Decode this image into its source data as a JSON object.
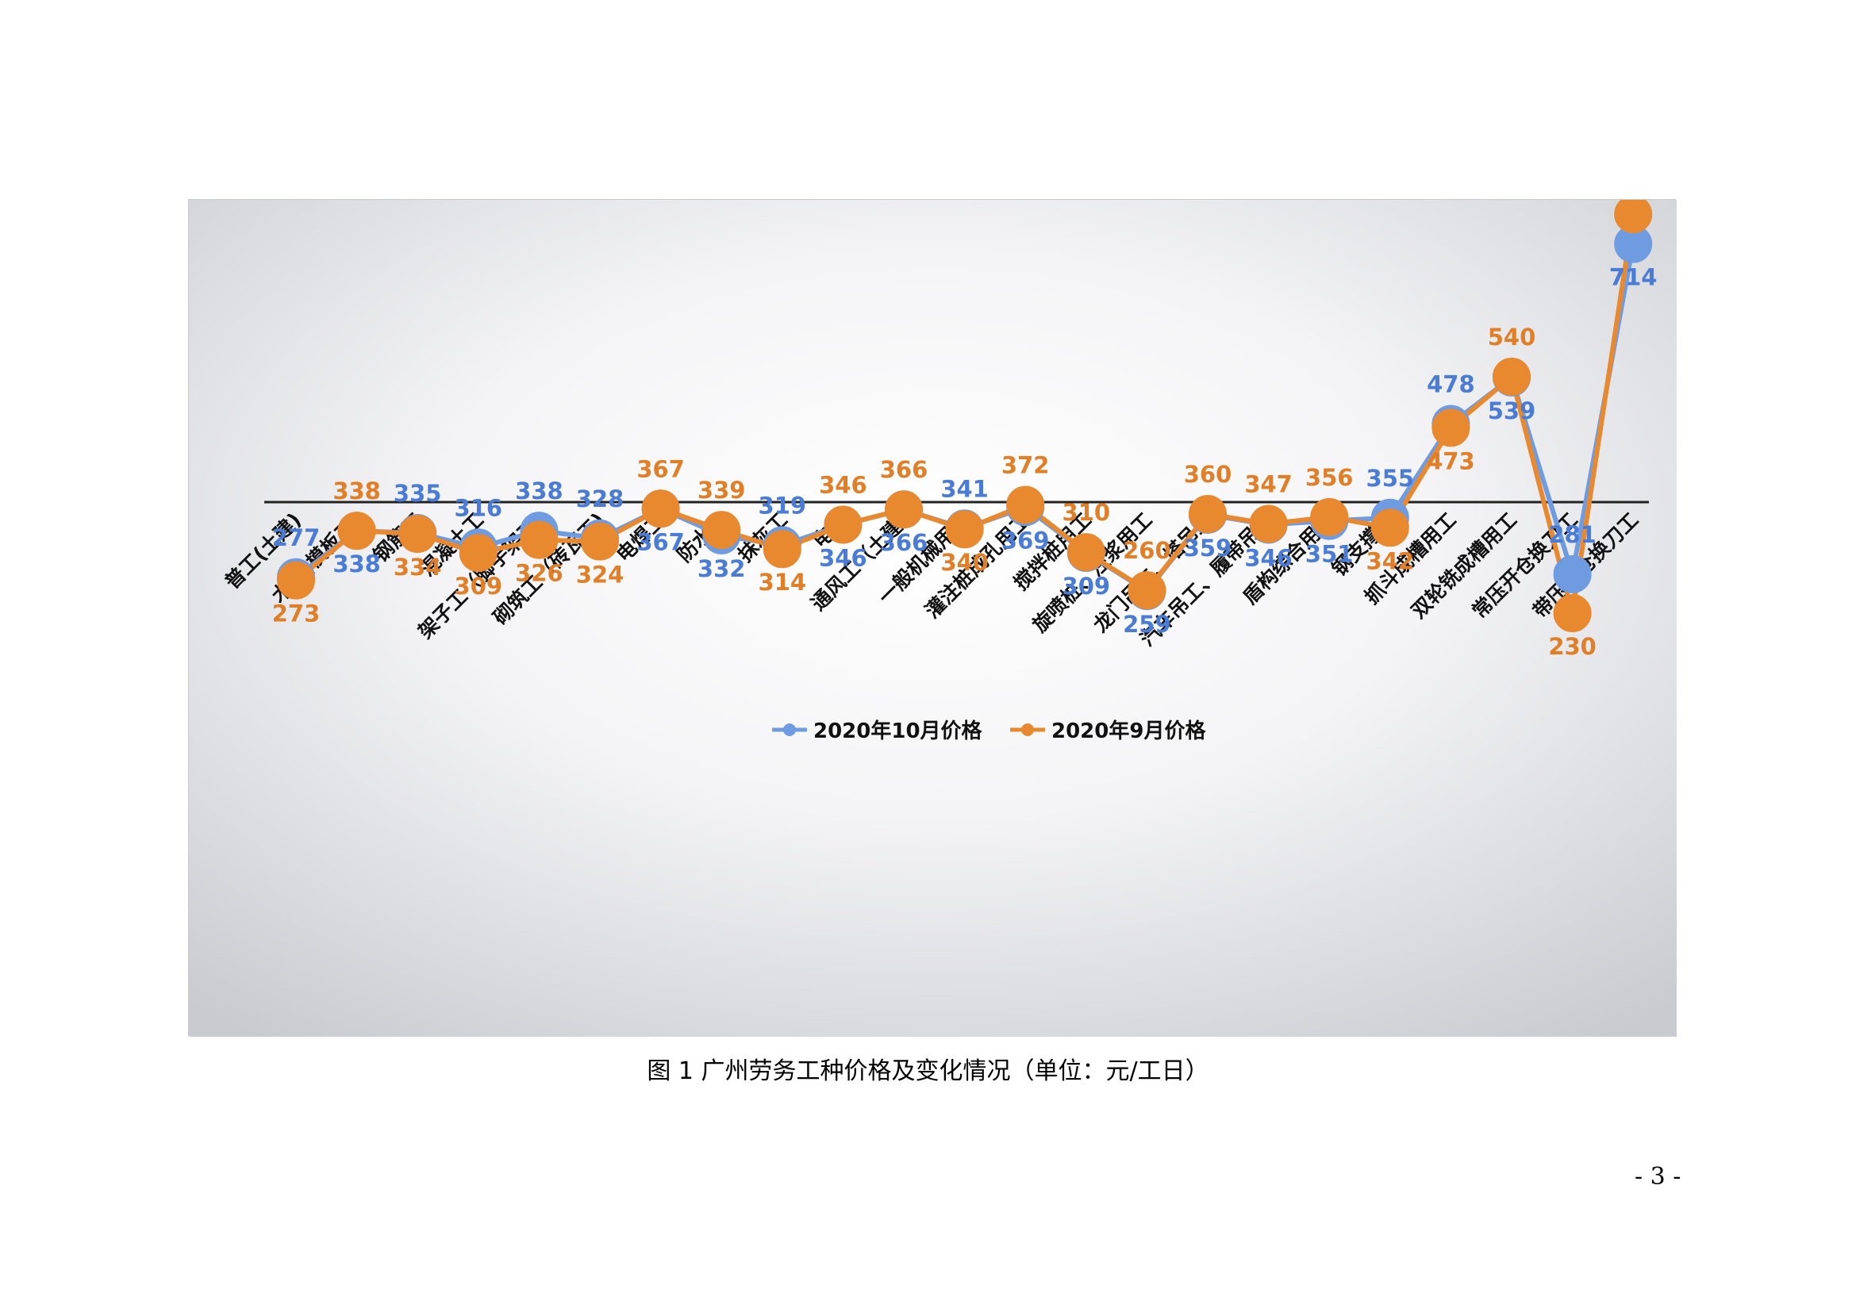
{
  "caption": "图 1  广州劳务工种价格及变化情况（单位：元/工日）",
  "page_number": "- 3 -",
  "colors": {
    "series_oct": "#6f9be0",
    "series_sep": "#e8892f",
    "label_oct": "#4a7cd6",
    "label_sep": "#e07f27",
    "axis": "#222222"
  },
  "chart_data": {
    "type": "line",
    "title": "",
    "xlabel": "",
    "ylabel": "",
    "grid": false,
    "legend_position": "bottom",
    "ylim": [
      0,
      800
    ],
    "categories": [
      "普工(土建)",
      "木工(模板工)",
      "钢筋工",
      "混凝土工",
      "架子工（脚手架工)",
      "砌筑工（砖瓦工)",
      "电焊工",
      "防水工",
      "抹灰工",
      "电工",
      "通风工（土建)",
      "一般机械用工",
      "灌注桩成孔用工",
      "搅拌桩用工",
      "旋喷桩、注浆用工",
      "龙门吊工、塔吊工",
      "汽车吊工、履带吊工",
      "盾构综合用工",
      "钢支撑工",
      "抓斗成槽用工",
      "双轮铣成槽用工",
      "常压开仓换刀工",
      "带压开仓换刀工"
    ],
    "series": [
      {
        "name": "2020年10月价格",
        "values": [
          277,
          338,
          335,
          316,
          338,
          328,
          367,
          332,
          319,
          346,
          366,
          341,
          369,
          309,
          259,
          359,
          346,
          351,
          355,
          478,
          539,
          281,
          714
        ]
      },
      {
        "name": "2020年9月价格",
        "values": [
          273,
          338,
          334,
          309,
          326,
          324,
          367,
          339,
          314,
          346,
          366,
          340,
          372,
          310,
          260,
          360,
          347,
          356,
          342,
          473,
          540,
          230,
          753
        ]
      }
    ]
  }
}
